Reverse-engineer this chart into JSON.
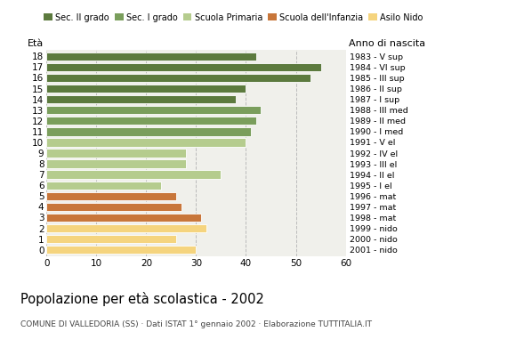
{
  "ages": [
    18,
    17,
    16,
    15,
    14,
    13,
    12,
    11,
    10,
    9,
    8,
    7,
    6,
    5,
    4,
    3,
    2,
    1,
    0
  ],
  "values": [
    42,
    55,
    53,
    40,
    38,
    43,
    42,
    41,
    40,
    28,
    28,
    35,
    23,
    26,
    27,
    31,
    32,
    26,
    30
  ],
  "right_labels": [
    "1983 - V sup",
    "1984 - VI sup",
    "1985 - III sup",
    "1986 - II sup",
    "1987 - I sup",
    "1988 - III med",
    "1989 - II med",
    "1990 - I med",
    "1991 - V el",
    "1992 - IV el",
    "1993 - III el",
    "1994 - II el",
    "1995 - I el",
    "1996 - mat",
    "1997 - mat",
    "1998 - mat",
    "1999 - nido",
    "2000 - nido",
    "2001 - nido"
  ],
  "bar_colors": [
    "#5c7a3e",
    "#5c7a3e",
    "#5c7a3e",
    "#5c7a3e",
    "#5c7a3e",
    "#7a9e5c",
    "#7a9e5c",
    "#7a9e5c",
    "#b5cc8e",
    "#b5cc8e",
    "#b5cc8e",
    "#b5cc8e",
    "#b5cc8e",
    "#c8763a",
    "#c8763a",
    "#c8763a",
    "#f5d47e",
    "#f5d47e",
    "#f5d47e"
  ],
  "legend_labels": [
    "Sec. II grado",
    "Sec. I grado",
    "Scuola Primaria",
    "Scuola dell'Infanzia",
    "Asilo Nido"
  ],
  "legend_colors": [
    "#5c7a3e",
    "#7a9e5c",
    "#b5cc8e",
    "#c8763a",
    "#f5d47e"
  ],
  "xlabel_left": "Età",
  "xlabel_right": "Anno di nascita",
  "xlim": [
    0,
    60
  ],
  "xticks": [
    0,
    10,
    20,
    30,
    40,
    50,
    60
  ],
  "title": "Popolazione per età scolastica - 2002",
  "footnote": "COMUNE DI VALLEDORIA (SS) · Dati ISTAT 1° gennaio 2002 · Elaborazione TUTTITALIA.IT",
  "bg_color": "#ffffff",
  "plot_bg_color": "#f0f0eb",
  "grid_color": "#bbbbbb"
}
